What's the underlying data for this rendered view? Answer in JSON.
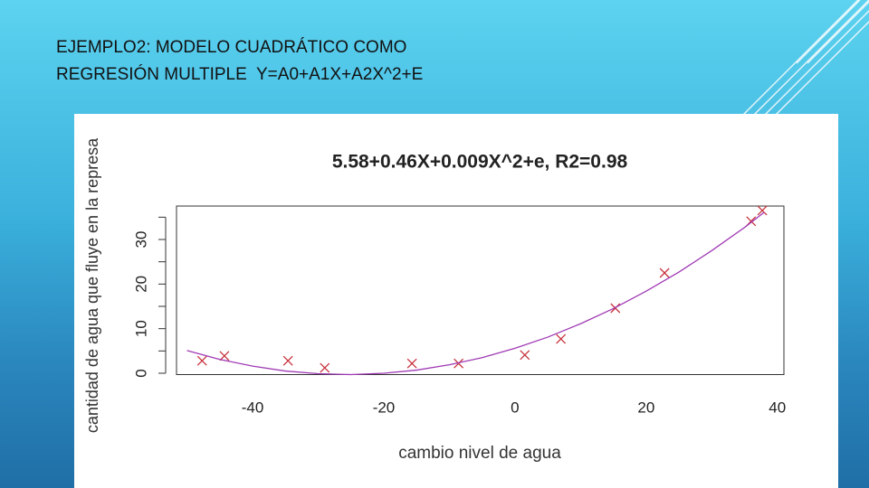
{
  "slide": {
    "title_lines": [
      "EJEMPLO2: MODELO CUADRÁTICO COMO",
      "REGRESIÓN MULTIPLE  Y=A0+A1X+A2X^2+E"
    ]
  },
  "chart_data": {
    "type": "scatter",
    "title": "5.58+0.46X+0.009X^2+e, R2=0.98",
    "x_label": "cambio nivel de agua",
    "y_label": "cantidad de agua que fluye en la represa",
    "xlim": [
      -51.6,
      41
    ],
    "ylim": [
      -0.3,
      37.5
    ],
    "xticks": [
      -40,
      -20,
      0,
      20,
      40
    ],
    "yticks": [
      0,
      10,
      20,
      30
    ],
    "yminorticks": [
      5,
      15,
      25,
      35
    ],
    "series": [
      {
        "color": "#c8323c",
        "marker": "x",
        "x": [
          -47.7,
          -44.3,
          -34.6,
          -29.0,
          -15.7,
          -8.6,
          1.5,
          7.0,
          15.3,
          22.8,
          36.0,
          37.7
        ],
        "values": [
          2.8,
          3.9,
          2.8,
          1.2,
          2.2,
          2.2,
          4.1,
          7.7,
          14.6,
          22.5,
          34.1,
          36.5
        ]
      },
      {
        "color": "#a03ab4",
        "marker": "line",
        "x": [
          -50,
          -45,
          -40,
          -35,
          -30,
          -25,
          -20,
          -15,
          -10,
          -5,
          0,
          5,
          10,
          15,
          20,
          25,
          30,
          35,
          38
        ],
        "values": [
          5.1,
          3.1,
          1.6,
          0.5,
          -0.1,
          -0.3,
          0.0,
          0.7,
          1.9,
          3.5,
          5.6,
          8.1,
          11.1,
          14.5,
          18.4,
          22.7,
          27.5,
          32.7,
          36.1
        ]
      }
    ]
  }
}
